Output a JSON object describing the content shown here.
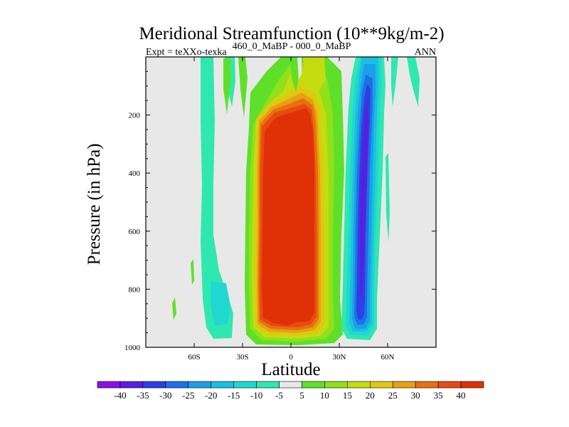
{
  "chart_data": {
    "type": "heatmap",
    "title": "Meridional Streamfunction (10**9kg/m-2)",
    "subtitle_left": "Expt = teXXo-texka",
    "subtitle_center": "460_0_MaBP - 000_0_MaBP",
    "subtitle_right": "ANN",
    "xlabel": "Latitude",
    "ylabel": "Pressure (in hPa)",
    "xlim": [
      -90,
      90
    ],
    "ylim": [
      1000,
      0
    ],
    "x_ticks": [
      {
        "value": -60,
        "label": "60S"
      },
      {
        "value": -30,
        "label": "30S"
      },
      {
        "value": 0,
        "label": "0"
      },
      {
        "value": 30,
        "label": "30N"
      },
      {
        "value": 60,
        "label": "60N"
      }
    ],
    "y_ticks": [
      {
        "value": 200,
        "label": "200"
      },
      {
        "value": 400,
        "label": "400"
      },
      {
        "value": 600,
        "label": "600"
      },
      {
        "value": 800,
        "label": "800"
      },
      {
        "value": 1000,
        "label": "1000"
      }
    ],
    "colorbar": {
      "labels": [
        "-40",
        "-35",
        "-30",
        "-25",
        "-20",
        "-15",
        "-10",
        "-5",
        "5",
        "10",
        "15",
        "20",
        "25",
        "30",
        "35",
        "40"
      ],
      "colors": [
        "#8a10e8",
        "#5a1ee0",
        "#2e3fe3",
        "#1e70e8",
        "#1aa0e6",
        "#1bc0e0",
        "#20d8d0",
        "#2ee8b0",
        "#e8e8e8",
        "#5ee02a",
        "#90e01a",
        "#c4dc10",
        "#e0c810",
        "#e8a010",
        "#e87010",
        "#e84a10",
        "#e03008"
      ]
    },
    "features": [
      {
        "name": "southern-hemisphere cell",
        "sign": "negative",
        "lat_range": [
          -55,
          -45
        ],
        "peak": -10
      },
      {
        "name": "hadley cell core",
        "sign": "positive",
        "lat_range": [
          -15,
          20
        ],
        "peak": 40
      },
      {
        "name": "northern-hemisphere ferrel cell",
        "sign": "negative",
        "lat_range": [
          30,
          55
        ],
        "peak": -40
      }
    ]
  }
}
